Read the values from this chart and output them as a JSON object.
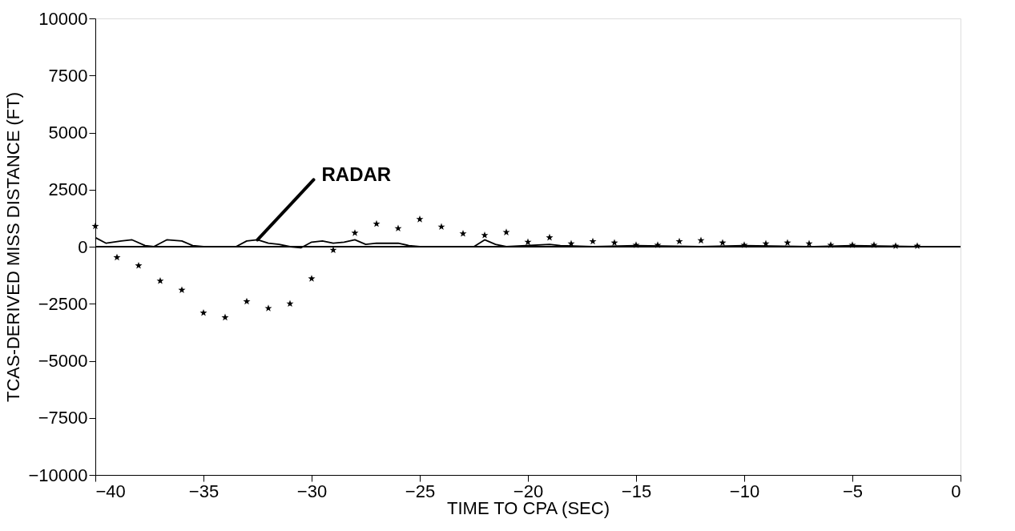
{
  "chart_data": {
    "type": "scatter",
    "xlabel": "TIME TO CPA (SEC)",
    "ylabel": "TCAS-DERIVED MISS DISTANCE (FT)",
    "xlim": [
      -40,
      0
    ],
    "xticks": [
      -40,
      -35,
      -30,
      -25,
      -20,
      -15,
      -10,
      -5,
      0
    ],
    "ylim": [
      -10000,
      10000
    ],
    "yticks": [
      -10000,
      -7500,
      -5000,
      -2500,
      0,
      2500,
      5000,
      7500,
      10000
    ],
    "grid": false,
    "ref_lines": [
      {
        "axis": "y",
        "value": 0,
        "color": "#000000"
      }
    ],
    "series": [
      {
        "marker": "star",
        "color": "#000000",
        "x": [
          -40,
          -39,
          -38,
          -37,
          -36,
          -35,
          -34,
          -33,
          -32,
          -31,
          -30,
          -29,
          -28,
          -27,
          -26,
          -25,
          -24,
          -23,
          -22,
          -21,
          -20,
          -19,
          -18,
          -17,
          -16,
          -15,
          -14,
          -13,
          -12,
          -11,
          -10,
          -9,
          -8,
          -7,
          -6,
          -5,
          -4,
          -3,
          -2
        ],
        "values": [
          900,
          -470,
          -830,
          -1500,
          -1900,
          -2900,
          -3100,
          -2400,
          -2700,
          -2500,
          -1400,
          -150,
          600,
          1000,
          800,
          1200,
          870,
          570,
          500,
          630,
          200,
          400,
          130,
          230,
          170,
          70,
          70,
          230,
          270,
          170,
          70,
          130,
          170,
          130,
          70,
          70,
          70,
          30,
          30
        ]
      },
      {
        "type": "line",
        "name": "RADAR",
        "color": "#000000",
        "line_style": "solid",
        "x": [
          -40,
          -39.5,
          -38.8,
          -38.3,
          -37.7,
          -37.3,
          -36.7,
          -36,
          -35.5,
          -35,
          -33.5,
          -33,
          -32.5,
          -32,
          -31.5,
          -31,
          -30.5,
          -30,
          -29.5,
          -29,
          -28.5,
          -28,
          -27.5,
          -27,
          -26,
          -25.5,
          -25,
          -22.5,
          -22,
          -21.5,
          -21,
          -19,
          -18.5,
          -17,
          -15,
          -12,
          -10,
          -7,
          -5,
          -2,
          0
        ],
        "values": [
          400,
          150,
          250,
          300,
          50,
          0,
          300,
          250,
          50,
          0,
          0,
          250,
          300,
          150,
          100,
          0,
          -50,
          200,
          250,
          150,
          200,
          300,
          100,
          150,
          150,
          50,
          0,
          0,
          300,
          100,
          0,
          100,
          50,
          0,
          50,
          0,
          50,
          0,
          50,
          0,
          0
        ]
      }
    ]
  }
}
